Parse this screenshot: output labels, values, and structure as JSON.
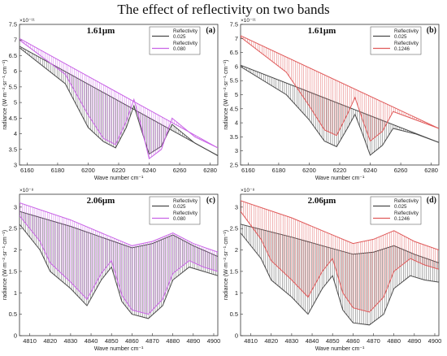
{
  "figure": {
    "title": "The effect of reflectivity on two bands"
  },
  "colors": {
    "base": "#4a4a4a",
    "magenta": "#c964e6",
    "red": "#e05a5a"
  },
  "chart_data": [
    {
      "id": "a",
      "type": "line",
      "title": "1.61μm",
      "panel_label": "(a)",
      "xlabel": "Wave number cm⁻¹",
      "ylabel": "radiance (W·m⁻²·sr⁻¹·cm⁻¹)",
      "exponent": "×10⁻¹¹",
      "xlim": [
        6155,
        6285
      ],
      "ylim": [
        3,
        7.5
      ],
      "xticks": [
        "6160",
        "6180",
        "6200",
        "6220",
        "6240",
        "6260",
        "6280"
      ],
      "yticks": [
        "3",
        "3.5",
        "4",
        "4.5",
        "5",
        "5.5",
        "6",
        "6.5",
        "7",
        "7.5"
      ],
      "legend": [
        {
          "header": "Reflectivity",
          "value": "0.025",
          "color": "#4a4a4a"
        },
        {
          "header": "Reflectivity",
          "value": "0.080",
          "color": "#c964e6"
        }
      ],
      "series": [
        {
          "value": "0.025",
          "color": "#4a4a4a",
          "upper": [
            [
              6155,
              6.8
            ],
            [
              6285,
              3.3
            ]
          ],
          "lower": [
            [
              6155,
              6.75
            ],
            [
              6185,
              5.6
            ],
            [
              6200,
              4.2
            ],
            [
              6210,
              3.75
            ],
            [
              6218,
              3.55
            ],
            [
              6225,
              4.2
            ],
            [
              6230,
              4.9
            ],
            [
              6235,
              4.1
            ],
            [
              6240,
              3.35
            ],
            [
              6248,
              3.6
            ],
            [
              6255,
              4.3
            ],
            [
              6270,
              3.7
            ],
            [
              6285,
              3.3
            ]
          ]
        },
        {
          "value": "0.080",
          "color": "#c964e6",
          "upper": [
            [
              6155,
              7.05
            ],
            [
              6285,
              3.55
            ]
          ],
          "lower": [
            [
              6155,
              7.0
            ],
            [
              6185,
              5.9
            ],
            [
              6200,
              4.6
            ],
            [
              6210,
              3.85
            ],
            [
              6218,
              3.65
            ],
            [
              6225,
              4.4
            ],
            [
              6230,
              5.1
            ],
            [
              6235,
              4.2
            ],
            [
              6240,
              3.2
            ],
            [
              6248,
              3.5
            ],
            [
              6255,
              4.5
            ],
            [
              6270,
              3.9
            ],
            [
              6285,
              3.55
            ]
          ]
        }
      ]
    },
    {
      "id": "b",
      "type": "line",
      "title": "1.61μm",
      "panel_label": "(b)",
      "xlabel": "Wave number cm⁻¹",
      "ylabel": "radiance (W·m⁻²·sr⁻¹·cm⁻¹)",
      "exponent": "×10⁻¹¹",
      "xlim": [
        6155,
        6285
      ],
      "ylim": [
        2.5,
        7.5
      ],
      "xticks": [
        "6160",
        "6180",
        "6200",
        "6220",
        "6240",
        "6260",
        "6280"
      ],
      "yticks": [
        "2.5",
        "3",
        "3.5",
        "4",
        "4.5",
        "5",
        "5.5",
        "6",
        "6.5",
        "7",
        "7.5"
      ],
      "legend": [
        {
          "header": "Reflectivity",
          "value": "0.025",
          "color": "#4a4a4a"
        },
        {
          "header": "Reflectivity",
          "value": "0.1246",
          "color": "#e05a5a"
        }
      ],
      "series": [
        {
          "value": "0.025",
          "color": "#4a4a4a",
          "upper": [
            [
              6155,
              6.05
            ],
            [
              6285,
              3.3
            ]
          ],
          "lower": [
            [
              6155,
              6.0
            ],
            [
              6185,
              5.0
            ],
            [
              6200,
              4.1
            ],
            [
              6210,
              3.35
            ],
            [
              6218,
              3.15
            ],
            [
              6225,
              3.8
            ],
            [
              6230,
              4.3
            ],
            [
              6235,
              3.6
            ],
            [
              6240,
              2.85
            ],
            [
              6248,
              3.2
            ],
            [
              6255,
              3.8
            ],
            [
              6270,
              3.6
            ],
            [
              6285,
              3.3
            ]
          ]
        },
        {
          "value": "0.1246",
          "color": "#e05a5a",
          "upper": [
            [
              6155,
              7.1
            ],
            [
              6285,
              3.8
            ]
          ],
          "lower": [
            [
              6155,
              7.05
            ],
            [
              6185,
              5.8
            ],
            [
              6200,
              4.6
            ],
            [
              6210,
              3.75
            ],
            [
              6218,
              3.55
            ],
            [
              6225,
              4.3
            ],
            [
              6230,
              4.9
            ],
            [
              6235,
              4.1
            ],
            [
              6240,
              3.35
            ],
            [
              6248,
              3.7
            ],
            [
              6255,
              4.4
            ],
            [
              6270,
              4.1
            ],
            [
              6285,
              3.8
            ]
          ]
        }
      ]
    },
    {
      "id": "c",
      "type": "line",
      "title": "2.06μm",
      "panel_label": "(c)",
      "xlabel": "Wave number cm⁻¹",
      "ylabel": "radiance (W·m⁻²·sr⁻¹·cm⁻¹)",
      "exponent": "×10⁻⁸",
      "xlim": [
        4805,
        4902
      ],
      "ylim": [
        0,
        3.3
      ],
      "xticks": [
        "4810",
        "4820",
        "4830",
        "4840",
        "4850",
        "4860",
        "4870",
        "4880",
        "4890",
        "4900"
      ],
      "yticks": [
        "0",
        "0.5",
        "1",
        "1.5",
        "2",
        "2.5",
        "3"
      ],
      "legend": [
        {
          "header": "Reflectivity",
          "value": "0.025",
          "color": "#4a4a4a"
        },
        {
          "header": "Reflectivity",
          "value": "0.080",
          "color": "#c964e6"
        }
      ],
      "series": [
        {
          "value": "0.025",
          "color": "#4a4a4a",
          "upper": [
            [
              4805,
              2.9
            ],
            [
              4830,
              2.55
            ],
            [
              4845,
              2.3
            ],
            [
              4860,
              2.05
            ],
            [
              4870,
              2.15
            ],
            [
              4880,
              2.35
            ],
            [
              4890,
              2.1
            ],
            [
              4902,
              1.85
            ]
          ],
          "lower": [
            [
              4805,
              2.6
            ],
            [
              4815,
              2.0
            ],
            [
              4820,
              1.5
            ],
            [
              4830,
              1.1
            ],
            [
              4838,
              0.7
            ],
            [
              4845,
              1.3
            ],
            [
              4850,
              1.6
            ],
            [
              4855,
              0.8
            ],
            [
              4860,
              0.5
            ],
            [
              4868,
              0.4
            ],
            [
              4875,
              0.7
            ],
            [
              4880,
              1.3
            ],
            [
              4888,
              1.6
            ],
            [
              4895,
              1.5
            ],
            [
              4902,
              1.4
            ]
          ]
        },
        {
          "value": "0.080",
          "color": "#c964e6",
          "upper": [
            [
              4805,
              3.1
            ],
            [
              4830,
              2.7
            ],
            [
              4845,
              2.4
            ],
            [
              4860,
              2.1
            ],
            [
              4870,
              2.2
            ],
            [
              4880,
              2.4
            ],
            [
              4890,
              2.15
            ],
            [
              4902,
              1.95
            ]
          ],
          "lower": [
            [
              4805,
              2.8
            ],
            [
              4815,
              2.2
            ],
            [
              4820,
              1.7
            ],
            [
              4830,
              1.25
            ],
            [
              4838,
              0.85
            ],
            [
              4845,
              1.45
            ],
            [
              4850,
              1.75
            ],
            [
              4855,
              0.95
            ],
            [
              4860,
              0.6
            ],
            [
              4868,
              0.5
            ],
            [
              4875,
              0.85
            ],
            [
              4880,
              1.45
            ],
            [
              4888,
              1.75
            ],
            [
              4895,
              1.6
            ],
            [
              4902,
              1.5
            ]
          ]
        }
      ]
    },
    {
      "id": "d",
      "type": "line",
      "title": "2.06μm",
      "panel_label": "(d)",
      "xlabel": "Wave number cm⁻¹",
      "ylabel": "radiance (W·m⁻²·sr⁻¹·cm⁻¹)",
      "exponent": "×10⁻⁸",
      "xlim": [
        4805,
        4902
      ],
      "ylim": [
        0,
        3.3
      ],
      "xticks": [
        "4810",
        "4820",
        "4830",
        "4840",
        "4850",
        "4860",
        "4870",
        "4880",
        "4890",
        "4900"
      ],
      "yticks": [
        "0",
        "0.5",
        "1",
        "1.5",
        "2",
        "2.5",
        "3"
      ],
      "legend": [
        {
          "header": "Reflectivity",
          "value": "0.025",
          "color": "#4a4a4a"
        },
        {
          "header": "Reflectivity",
          "value": "0.1246",
          "color": "#e05a5a"
        }
      ],
      "series": [
        {
          "value": "0.025",
          "color": "#4a4a4a",
          "upper": [
            [
              4805,
              2.6
            ],
            [
              4830,
              2.3
            ],
            [
              4845,
              2.1
            ],
            [
              4860,
              1.9
            ],
            [
              4870,
              1.95
            ],
            [
              4880,
              2.1
            ],
            [
              4890,
              1.9
            ],
            [
              4902,
              1.7
            ]
          ],
          "lower": [
            [
              4805,
              2.4
            ],
            [
              4815,
              1.8
            ],
            [
              4820,
              1.3
            ],
            [
              4830,
              0.9
            ],
            [
              4838,
              0.5
            ],
            [
              4845,
              1.1
            ],
            [
              4850,
              1.4
            ],
            [
              4855,
              0.6
            ],
            [
              4860,
              0.3
            ],
            [
              4868,
              0.25
            ],
            [
              4875,
              0.5
            ],
            [
              4880,
              1.1
            ],
            [
              4888,
              1.4
            ],
            [
              4895,
              1.3
            ],
            [
              4902,
              1.25
            ]
          ]
        },
        {
          "value": "0.1246",
          "color": "#e05a5a",
          "upper": [
            [
              4805,
              3.15
            ],
            [
              4830,
              2.75
            ],
            [
              4845,
              2.45
            ],
            [
              4860,
              2.15
            ],
            [
              4870,
              2.25
            ],
            [
              4880,
              2.45
            ],
            [
              4890,
              2.2
            ],
            [
              4902,
              2.0
            ]
          ],
          "lower": [
            [
              4805,
              2.9
            ],
            [
              4815,
              2.25
            ],
            [
              4820,
              1.75
            ],
            [
              4830,
              1.3
            ],
            [
              4838,
              0.9
            ],
            [
              4845,
              1.5
            ],
            [
              4850,
              1.8
            ],
            [
              4855,
              1.0
            ],
            [
              4860,
              0.65
            ],
            [
              4868,
              0.55
            ],
            [
              4875,
              0.9
            ],
            [
              4880,
              1.5
            ],
            [
              4888,
              1.8
            ],
            [
              4895,
              1.65
            ],
            [
              4902,
              1.55
            ]
          ]
        }
      ]
    }
  ]
}
